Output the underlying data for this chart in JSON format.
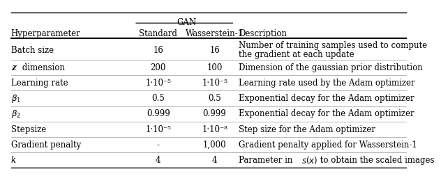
{
  "col_headers": [
    "Hyperparameter",
    "Standard",
    "Wasserstein-1",
    "Description"
  ],
  "gan_header": "GAN",
  "rows": [
    {
      "param": "Batch size",
      "param_style": "normal",
      "standard": "16",
      "wasserstein": "16",
      "description": "Number of training samples used to compute\nthe gradient at each update"
    },
    {
      "param": "z dimension",
      "param_style": "italic_z",
      "standard": "200",
      "wasserstein": "100",
      "description": "Dimension of the gaussian prior distribution"
    },
    {
      "param": "Learning rate",
      "param_style": "normal",
      "standard": "1·10⁻⁵",
      "wasserstein": "1·10⁻⁵",
      "description": "Learning rate used by the Adam optimizer"
    },
    {
      "param": "β1",
      "param_style": "beta1",
      "standard": "0.5",
      "wasserstein": "0.5",
      "description": "Exponential decay for the Adam optimizer"
    },
    {
      "param": "β2",
      "param_style": "beta2",
      "standard": "0.999",
      "wasserstein": "0.999",
      "description": "Exponential decay for the Adam optimizer"
    },
    {
      "param": "Stepsize",
      "param_style": "normal",
      "standard": "1·10⁻⁵",
      "wasserstein": "1·10⁻⁸",
      "description": "Step size for the Adam optimizer"
    },
    {
      "param": "Gradient penalty",
      "param_style": "normal",
      "standard": "-",
      "wasserstein": "1,000",
      "description": "Gradient penalty applied for Wasserstein-1"
    },
    {
      "param": "k",
      "param_style": "italic_k",
      "standard": "4",
      "wasserstein": "4",
      "description": "Parameter in s(x) to obtain the scaled images"
    }
  ],
  "background_color": "#ffffff",
  "text_color": "#000000",
  "font_size": 8.5,
  "header_font_size": 8.5
}
